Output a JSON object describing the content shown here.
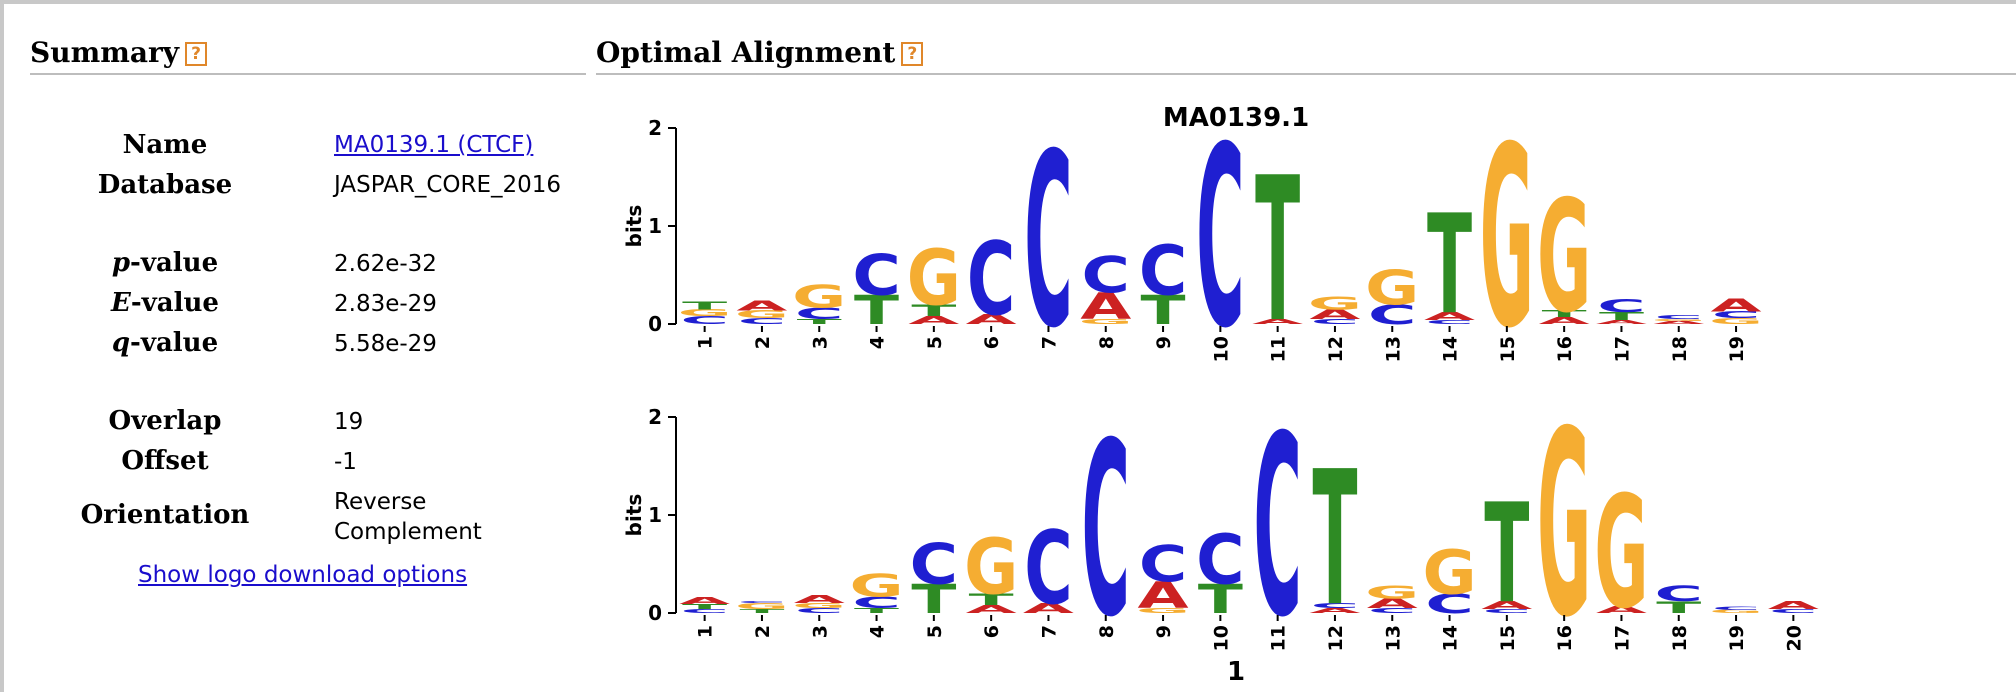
{
  "summary": {
    "heading": "Summary",
    "help": "?",
    "name_label": "Name",
    "name_value": "MA0139.1 (CTCF)",
    "database_label": "Database",
    "database_value": "JASPAR_CORE_2016",
    "pvalue_italic": "p",
    "pvalue_label": "-value",
    "pvalue_value": "2.62e-32",
    "evalue_italic": "E",
    "evalue_label": "-value",
    "evalue_value": "2.83e-29",
    "qvalue_italic": "q",
    "qvalue_label": "-value",
    "qvalue_value": "5.58e-29",
    "overlap_label": "Overlap",
    "overlap_value": "19",
    "offset_label": "Offset",
    "offset_value": "-1",
    "orientation_label": "Orientation",
    "orientation_line1": "Reverse",
    "orientation_line2": "Complement",
    "download_link": "Show logo download options"
  },
  "alignment": {
    "heading": "Optimal Alignment",
    "help": "?",
    "colors": {
      "A": "#cc2222",
      "C": "#1f1fd1",
      "G": "#f5ad32",
      "T": "#2e8b24"
    },
    "logo1": {
      "title": "MA0139.1",
      "ylabel": "bits",
      "yticks": [
        "0",
        "1",
        "2"
      ],
      "positions": [
        "1",
        "2",
        "3",
        "4",
        "5",
        "6",
        "7",
        "8",
        "9",
        "10",
        "11",
        "12",
        "13",
        "14",
        "15",
        "16",
        "17",
        "18",
        "19"
      ],
      "stacks": [
        [
          [
            "C",
            0.08
          ],
          [
            "G",
            0.07
          ],
          [
            "T",
            0.08
          ]
        ],
        [
          [
            "C",
            0.06
          ],
          [
            "G",
            0.08
          ],
          [
            "A",
            0.1
          ]
        ],
        [
          [
            "T",
            0.05
          ],
          [
            "C",
            0.12
          ],
          [
            "G",
            0.23
          ]
        ],
        [
          [
            "T",
            0.3
          ],
          [
            "C",
            0.42
          ]
        ],
        [
          [
            "A",
            0.08
          ],
          [
            "T",
            0.12
          ],
          [
            "G",
            0.57
          ]
        ],
        [
          [
            "A",
            0.1
          ],
          [
            "C",
            0.75
          ]
        ],
        [
          [
            "C",
            1.78
          ]
        ],
        [
          [
            "G",
            0.05
          ],
          [
            "A",
            0.27
          ],
          [
            "C",
            0.37
          ]
        ],
        [
          [
            "T",
            0.3
          ],
          [
            "C",
            0.51
          ]
        ],
        [
          [
            "C",
            1.85
          ]
        ],
        [
          [
            "A",
            0.05
          ],
          [
            "T",
            1.48
          ]
        ],
        [
          [
            "C",
            0.05
          ],
          [
            "A",
            0.1
          ],
          [
            "G",
            0.13
          ]
        ],
        [
          [
            "C",
            0.2
          ],
          [
            "G",
            0.35
          ]
        ],
        [
          [
            "C",
            0.04
          ],
          [
            "A",
            0.08
          ],
          [
            "T",
            1.02
          ]
        ],
        [
          [
            "G",
            1.85
          ]
        ],
        [
          [
            "A",
            0.07
          ],
          [
            "T",
            0.07
          ],
          [
            "G",
            1.15
          ]
        ],
        [
          [
            "A",
            0.04
          ],
          [
            "T",
            0.08
          ],
          [
            "C",
            0.13
          ]
        ],
        [
          [
            "A",
            0.03
          ],
          [
            "G",
            0.02
          ],
          [
            "C",
            0.04
          ]
        ],
        [
          [
            "G",
            0.06
          ],
          [
            "C",
            0.07
          ],
          [
            "A",
            0.13
          ]
        ]
      ]
    },
    "logo2": {
      "ylabel": "bits",
      "yticks": [
        "0",
        "1",
        "2"
      ],
      "positions": [
        "1",
        "2",
        "3",
        "4",
        "5",
        "6",
        "7",
        "8",
        "9",
        "10",
        "11",
        "12",
        "13",
        "14",
        "15",
        "16",
        "17",
        "18",
        "19",
        "20"
      ],
      "stacks": [
        [
          [
            "C",
            0.04
          ],
          [
            "T",
            0.05
          ],
          [
            "A",
            0.07
          ]
        ],
        [
          [
            "T",
            0.04
          ],
          [
            "G",
            0.06
          ],
          [
            "C",
            0.02
          ]
        ],
        [
          [
            "C",
            0.05
          ],
          [
            "G",
            0.05
          ],
          [
            "A",
            0.08
          ]
        ],
        [
          [
            "T",
            0.05
          ],
          [
            "C",
            0.12
          ],
          [
            "G",
            0.23
          ]
        ],
        [
          [
            "T",
            0.3
          ],
          [
            "C",
            0.42
          ]
        ],
        [
          [
            "A",
            0.08
          ],
          [
            "T",
            0.12
          ],
          [
            "G",
            0.57
          ]
        ],
        [
          [
            "A",
            0.1
          ],
          [
            "C",
            0.75
          ]
        ],
        [
          [
            "C",
            1.78
          ]
        ],
        [
          [
            "G",
            0.05
          ],
          [
            "A",
            0.27
          ],
          [
            "C",
            0.37
          ]
        ],
        [
          [
            "T",
            0.3
          ],
          [
            "C",
            0.51
          ]
        ],
        [
          [
            "C",
            1.85
          ]
        ],
        [
          [
            "A",
            0.05
          ],
          [
            "C",
            0.05
          ],
          [
            "T",
            1.38
          ]
        ],
        [
          [
            "C",
            0.05
          ],
          [
            "A",
            0.1
          ],
          [
            "G",
            0.13
          ]
        ],
        [
          [
            "C",
            0.2
          ],
          [
            "G",
            0.45
          ]
        ],
        [
          [
            "C",
            0.04
          ],
          [
            "A",
            0.08
          ],
          [
            "T",
            1.02
          ]
        ],
        [
          [
            "G",
            1.9
          ]
        ],
        [
          [
            "A",
            0.07
          ],
          [
            "G",
            1.15
          ]
        ],
        [
          [
            "T",
            0.12
          ],
          [
            "C",
            0.16
          ]
        ],
        [
          [
            "G",
            0.03
          ],
          [
            "C",
            0.03
          ]
        ],
        [
          [
            "C",
            0.04
          ],
          [
            "A",
            0.08
          ]
        ]
      ],
      "xlabel": "1"
    }
  }
}
